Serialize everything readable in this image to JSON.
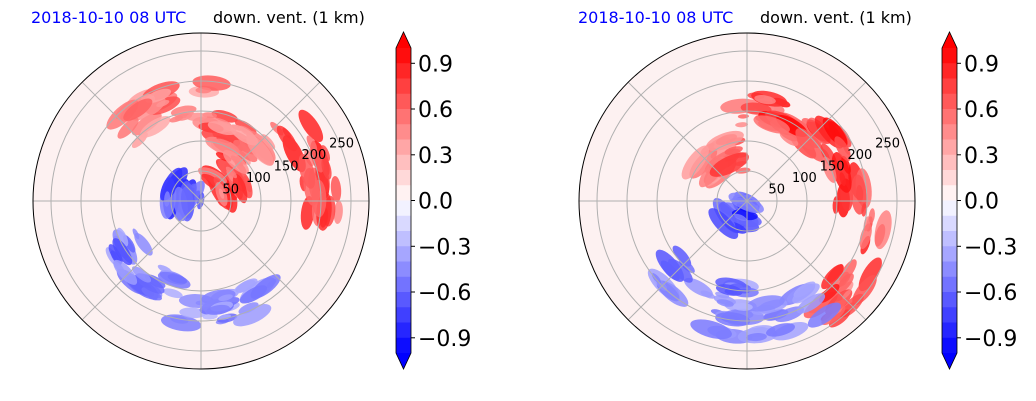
{
  "chart_data": [
    {
      "type": "heatmap",
      "projection": "polar",
      "title_time": "2018-10-10 08 UTC",
      "title_variable": "down. vent. (1 km)",
      "radial_ticks": [
        "50",
        "100",
        "150",
        "200",
        "250"
      ],
      "radial_tick_values": [
        50,
        100,
        150,
        200,
        250
      ],
      "radial_max": 280,
      "angular_grid_step_deg": 45,
      "grid": true,
      "colormap": "bwr",
      "colorbar": {
        "vmin": -1.0,
        "vmax": 1.0,
        "levels": 20,
        "extend": "both",
        "tick_labels": [
          "0.9",
          "0.6",
          "0.3",
          "0.0",
          "−0.3",
          "−0.6",
          "−0.9"
        ],
        "tick_values": [
          0.9,
          0.6,
          0.3,
          0.0,
          -0.3,
          -0.6,
          -0.9
        ]
      },
      "features": [
        {
          "r": 200,
          "theta": 18,
          "value": 1.0,
          "note": "strong positive cluster east-northeast"
        },
        {
          "r": 120,
          "theta": 60,
          "value": 0.8,
          "note": "positive arc north-east"
        },
        {
          "r": 170,
          "theta": 110,
          "value": 0.7,
          "note": "positive arc north"
        },
        {
          "r": 60,
          "theta": 40,
          "value": 0.9,
          "note": "positive band near centre"
        },
        {
          "r": 150,
          "theta": 230,
          "value": -0.7,
          "note": "negative band south-west"
        },
        {
          "r": 190,
          "theta": 285,
          "value": -0.6,
          "note": "negative band south"
        },
        {
          "r": 30,
          "theta": 170,
          "value": -0.9,
          "note": "negative spot near centre"
        }
      ]
    },
    {
      "type": "heatmap",
      "projection": "polar",
      "title_time": "2018-10-10 08 UTC",
      "title_variable": "down. vent. (1 km)",
      "radial_ticks": [
        "50",
        "100",
        "150",
        "200",
        "250"
      ],
      "radial_tick_values": [
        50,
        100,
        150,
        200,
        250
      ],
      "radial_max": 280,
      "angular_grid_step_deg": 45,
      "grid": true,
      "colormap": "bwr",
      "colorbar": {
        "vmin": -1.0,
        "vmax": 1.0,
        "levels": 20,
        "extend": "both",
        "tick_labels": [
          "0.9",
          "0.6",
          "0.3",
          "0.0",
          "−0.3",
          "−0.6",
          "−0.9"
        ],
        "tick_values": [
          0.9,
          0.6,
          0.3,
          0.0,
          -0.3,
          -0.6,
          -0.9
        ]
      },
      "features": [
        {
          "r": 150,
          "theta": 70,
          "value": 1.0,
          "note": "strong positive arc north"
        },
        {
          "r": 170,
          "theta": 20,
          "value": 1.0,
          "note": "strong positive band east"
        },
        {
          "r": 220,
          "theta": 330,
          "value": 0.9,
          "note": "positive band south-east"
        },
        {
          "r": 80,
          "theta": 120,
          "value": 0.8,
          "note": "positive spiral near centre"
        },
        {
          "r": 25,
          "theta": 240,
          "value": -1.0,
          "note": "strong negative core south of centre"
        },
        {
          "r": 170,
          "theta": 245,
          "value": -0.7,
          "note": "negative band south-west"
        },
        {
          "r": 200,
          "theta": 280,
          "value": -0.6,
          "note": "negative band south"
        }
      ]
    }
  ]
}
